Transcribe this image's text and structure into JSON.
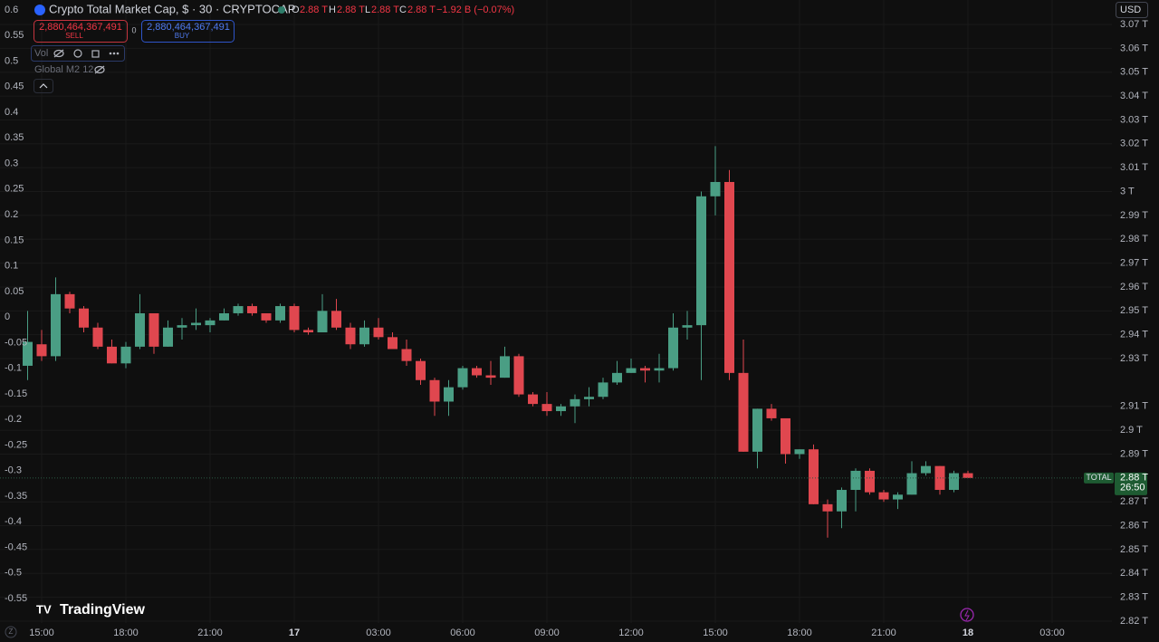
{
  "chart_data": {
    "type": "candlestick",
    "title": "Crypto Total Market Cap, $ · 30 · CRYPTOCAP",
    "categories": [
      null,
      "15:00",
      null,
      null,
      null,
      null,
      null,
      "18:00",
      null,
      null,
      null,
      null,
      null,
      "21:00",
      null,
      null,
      null,
      null,
      null,
      "17",
      null,
      null,
      null,
      null,
      null,
      "03:00",
      null,
      null,
      null,
      null,
      null,
      "06:00",
      null,
      null,
      null,
      null,
      null,
      "09:00",
      null,
      null,
      null,
      null,
      null,
      "12:00",
      null,
      null,
      null,
      null,
      null,
      "15:00",
      null,
      null,
      null,
      null,
      null,
      "18:00",
      null,
      null,
      null,
      null,
      null,
      "21:00",
      null,
      null,
      null,
      null,
      null,
      "18",
      null,
      null,
      null,
      null,
      null,
      "03:00"
    ],
    "open": [
      2.927,
      2.936,
      2.931,
      2.957,
      2.951,
      2.943,
      2.935,
      2.928,
      2.935,
      2.949,
      2.935,
      2.943,
      2.944,
      2.944,
      2.946,
      2.949,
      2.952,
      2.949,
      2.946,
      2.952,
      2.942,
      2.941,
      2.95,
      2.943,
      2.936,
      2.943,
      2.939,
      2.934,
      2.929,
      2.921,
      2.912,
      2.918,
      2.926,
      2.923,
      2.922,
      2.931,
      2.915,
      2.911,
      2.908,
      2.91,
      2.913,
      2.914,
      2.92,
      2.924,
      2.926,
      2.925,
      2.926,
      2.943,
      2.944,
      2.998,
      3.004,
      2.924,
      2.891,
      2.909,
      2.905,
      2.89,
      2.892,
      2.869,
      2.866,
      2.875,
      2.883,
      2.874,
      2.871,
      2.873,
      2.882,
      2.885,
      2.875,
      2.882,
      null,
      null,
      null,
      null,
      null,
      null
    ],
    "high": [
      2.95,
      2.942,
      2.964,
      2.958,
      2.952,
      2.945,
      2.938,
      2.937,
      2.957,
      2.949,
      2.946,
      2.947,
      2.951,
      2.947,
      2.951,
      2.953,
      2.953,
      2.949,
      2.953,
      2.953,
      2.943,
      2.957,
      2.955,
      2.945,
      2.946,
      2.947,
      2.941,
      2.938,
      2.93,
      2.922,
      2.921,
      2.927,
      2.927,
      2.929,
      2.935,
      2.932,
      2.916,
      2.916,
      2.911,
      2.915,
      2.918,
      2.922,
      2.929,
      2.93,
      2.927,
      2.932,
      2.949,
      2.95,
      3.0,
      3.019,
      3.009,
      2.938,
      2.909,
      2.911,
      2.905,
      2.892,
      2.894,
      2.871,
      2.876,
      2.884,
      2.884,
      2.875,
      2.874,
      2.887,
      2.887,
      2.885,
      2.883,
      2.883,
      null,
      null,
      null,
      null,
      null,
      null
    ],
    "low": [
      2.921,
      2.929,
      2.929,
      2.949,
      2.941,
      2.934,
      2.928,
      2.926,
      2.934,
      2.932,
      2.935,
      2.938,
      2.942,
      2.941,
      2.946,
      2.948,
      2.948,
      2.945,
      2.945,
      2.941,
      2.94,
      2.941,
      2.942,
      2.934,
      2.935,
      2.938,
      2.934,
      2.927,
      2.919,
      2.906,
      2.906,
      2.917,
      2.922,
      2.919,
      2.922,
      2.914,
      2.91,
      2.906,
      2.906,
      2.903,
      2.91,
      2.913,
      2.919,
      2.924,
      2.92,
      2.92,
      2.925,
      2.938,
      2.921,
      2.99,
      2.921,
      2.891,
      2.884,
      2.904,
      2.886,
      2.888,
      2.869,
      2.855,
      2.859,
      2.866,
      2.873,
      2.87,
      2.867,
      2.873,
      2.881,
      2.873,
      2.874,
      2.88,
      null,
      null,
      null,
      null,
      null,
      null
    ],
    "close": [
      2.937,
      2.931,
      2.957,
      2.951,
      2.943,
      2.935,
      2.928,
      2.935,
      2.949,
      2.935,
      2.943,
      2.944,
      2.945,
      2.946,
      2.949,
      2.952,
      2.949,
      2.946,
      2.952,
      2.942,
      2.941,
      2.95,
      2.943,
      2.936,
      2.943,
      2.939,
      2.934,
      2.929,
      2.921,
      2.912,
      2.918,
      2.926,
      2.923,
      2.922,
      2.931,
      2.915,
      2.911,
      2.908,
      2.91,
      2.913,
      2.914,
      2.92,
      2.924,
      2.926,
      2.925,
      2.926,
      2.943,
      2.944,
      2.998,
      3.004,
      2.924,
      2.891,
      2.909,
      2.905,
      2.89,
      2.892,
      2.869,
      2.866,
      2.875,
      2.883,
      2.874,
      2.871,
      2.873,
      2.882,
      2.885,
      2.875,
      2.882,
      2.88,
      null,
      null,
      null,
      null,
      null,
      null
    ],
    "up_color": "#4a9e84",
    "down_color": "#e0474f",
    "ylim": [
      2.82,
      3.07
    ],
    "yticks": [
      {
        "value": 3.07,
        "label": "3.07 T"
      },
      {
        "value": 3.06,
        "label": "3.06 T"
      },
      {
        "value": 3.05,
        "label": "3.05 T"
      },
      {
        "value": 3.04,
        "label": "3.04 T"
      },
      {
        "value": 3.03,
        "label": "3.03 T"
      },
      {
        "value": 3.02,
        "label": "3.02 T"
      },
      {
        "value": 3.01,
        "label": "3.01 T"
      },
      {
        "value": 3,
        "label": "3 T"
      },
      {
        "value": 2.99,
        "label": "2.99 T"
      },
      {
        "value": 2.98,
        "label": "2.98 T"
      },
      {
        "value": 2.97,
        "label": "2.97 T"
      },
      {
        "value": 2.96,
        "label": "2.96 T"
      },
      {
        "value": 2.95,
        "label": "2.95 T"
      },
      {
        "value": 2.94,
        "label": "2.94 T"
      },
      {
        "value": 2.93,
        "label": "2.93 T"
      },
      {
        "value": 2.91,
        "label": "2.91 T"
      },
      {
        "value": 2.9,
        "label": "2.9 T"
      },
      {
        "value": 2.89,
        "label": "2.89 T"
      },
      {
        "value": 2.87,
        "label": "2.87 T"
      },
      {
        "value": 2.86,
        "label": "2.86 T"
      },
      {
        "value": 2.85,
        "label": "2.85 T"
      },
      {
        "value": 2.84,
        "label": "2.84 T"
      },
      {
        "value": 2.83,
        "label": "2.83 T"
      },
      {
        "value": 2.82,
        "label": "2.82 T"
      }
    ],
    "y2lim": [
      -0.55,
      0.6
    ],
    "y2ticks": [
      0.6,
      0.55,
      0.5,
      0.45,
      0.4,
      0.35,
      0.3,
      0.25,
      0.2,
      0.15,
      0.1,
      0.05,
      0,
      -0.05,
      -0.1,
      -0.15,
      -0.2,
      -0.25,
      -0.3,
      -0.35,
      -0.4,
      -0.45,
      -0.5,
      -0.55
    ],
    "grid": true,
    "last_price": {
      "symbol": "TOTAL",
      "label": "2.88 T",
      "countdown": "26:50"
    }
  },
  "header": {
    "o_label": "O",
    "o": "2.88 T",
    "h_label": "H",
    "h": "2.88 T",
    "l_label": "L",
    "l": "2.88 T",
    "c_label": "C",
    "c": "2.88 T",
    "change": "−1.92 B (−0.07%)"
  },
  "trade": {
    "sell_price": "2,880,464,367,491",
    "sell": "SELL",
    "spread": "0",
    "buy_price": "2,880,464,367,491",
    "buy": "BUY"
  },
  "indicators": {
    "vol": "Vol",
    "m2": "Global M2 12"
  },
  "currency": "USD",
  "logo": "TradingView",
  "z_button": "Z"
}
